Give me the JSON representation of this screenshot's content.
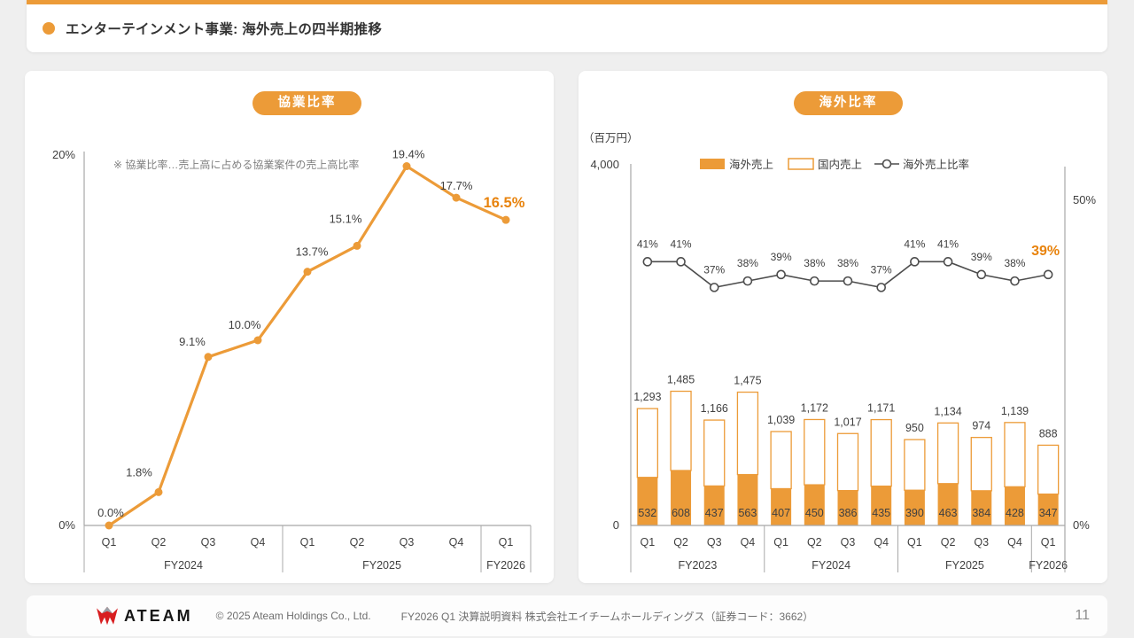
{
  "header": {
    "title": "エンターテインメント事業: 海外売上の四半期推移"
  },
  "colors": {
    "accent_orange": "#EC9B38",
    "emphasis_orange": "#E8830D",
    "ratio_line_gray": "#4D4D4D",
    "text_dark": "#404040",
    "note_gray": "#808080",
    "axis_gray": "#A8A8A8",
    "logo_red": "#D81E20"
  },
  "chart_data": [
    {
      "type": "line",
      "title": "協業比率",
      "note": "※  協業比率…売上高に占める協業案件の売上高比率",
      "categories": [
        "Q1",
        "Q2",
        "Q3",
        "Q4",
        "Q1",
        "Q2",
        "Q3",
        "Q4",
        "Q1"
      ],
      "groups": [
        {
          "label": "FY2024",
          "span": 4
        },
        {
          "label": "FY2025",
          "span": 4
        },
        {
          "label": "FY2026",
          "span": 1
        }
      ],
      "values": [
        0.0,
        1.8,
        9.1,
        10.0,
        13.7,
        15.1,
        19.4,
        17.7,
        16.5
      ],
      "point_labels": [
        "0.0%",
        "1.8%",
        "9.1%",
        "10.0%",
        "13.7%",
        "15.1%",
        "19.4%",
        "17.7%",
        "16.5%"
      ],
      "ylim": [
        0,
        20
      ],
      "ytick_labels": {
        "top": "20%",
        "bottom": "0%"
      },
      "highlight_last": true,
      "legend_position": "none",
      "grid": false
    },
    {
      "type": "bar",
      "title": "海外比率",
      "unit_label": "（百万円）",
      "categories": [
        "Q1",
        "Q2",
        "Q3",
        "Q4",
        "Q1",
        "Q2",
        "Q3",
        "Q4",
        "Q1",
        "Q2",
        "Q3",
        "Q4",
        "Q1"
      ],
      "groups": [
        {
          "label": "FY2023",
          "span": 4
        },
        {
          "label": "FY2024",
          "span": 4
        },
        {
          "label": "FY2025",
          "span": 4
        },
        {
          "label": "FY2026",
          "span": 1
        }
      ],
      "series": [
        {
          "name": "海外売上",
          "style": "filled",
          "values": [
            532,
            608,
            437,
            563,
            407,
            450,
            386,
            435,
            390,
            463,
            384,
            428,
            347
          ]
        },
        {
          "name": "国内売上",
          "style": "outlined",
          "note": "stacked remainder of total"
        }
      ],
      "totals": [
        1293,
        1485,
        1166,
        1475,
        1039,
        1172,
        1017,
        1171,
        950,
        1134,
        974,
        1139,
        888
      ],
      "total_labels": [
        "1,293",
        "1,485",
        "1,166",
        "1,475",
        "1,039",
        "1,172",
        "1,017",
        "1,171",
        "950",
        "1,134",
        "974",
        "1,139",
        "888"
      ],
      "ratio_series": {
        "name": "海外売上比率",
        "values": [
          41,
          41,
          37,
          38,
          39,
          38,
          38,
          37,
          41,
          41,
          39,
          38,
          39
        ],
        "labels": [
          "41%",
          "41%",
          "37%",
          "38%",
          "39%",
          "38%",
          "38%",
          "37%",
          "41%",
          "41%",
          "39%",
          "38%",
          "39%"
        ]
      },
      "left_axis": {
        "lim": [
          0,
          4000
        ],
        "tick_top": "4,000",
        "tick_bottom": "0"
      },
      "right_axis": {
        "lim": [
          0,
          50
        ],
        "tick_top": "50%",
        "tick_bottom": "0%"
      },
      "highlight_last": true,
      "legend_position": "top-inside",
      "grid": false
    }
  ],
  "footer": {
    "logo_text": "ATEAM",
    "copyright": "© 2025 Ateam Holdings Co., Ltd.",
    "document_title": "FY2026 Q1 決算説明資料 株式会社エイチームホールディングス（証券コード：3662）",
    "page_number": "11"
  }
}
